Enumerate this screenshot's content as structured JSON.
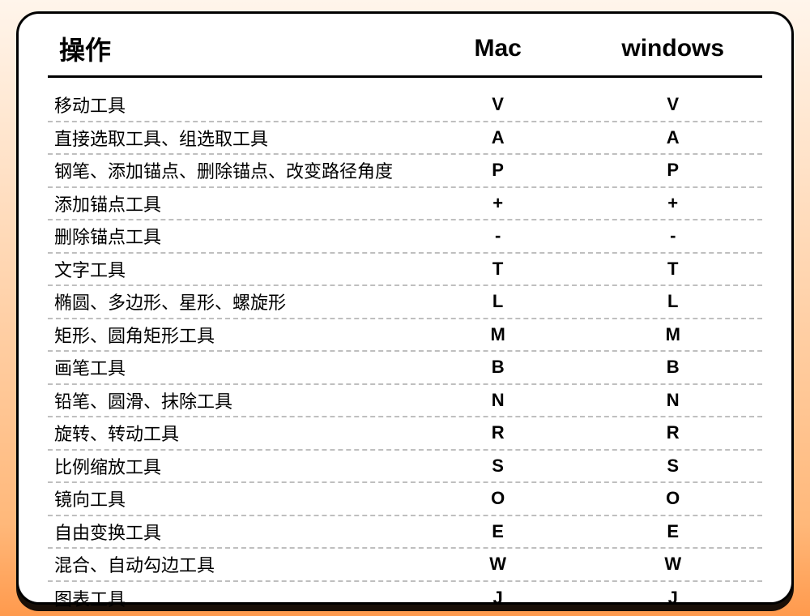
{
  "layout": {
    "background_gradient": [
      "#fff5eb",
      "#ffb87a",
      "#ff9a4d"
    ],
    "card_bg": "#ffffff",
    "card_border_color": "#000000",
    "card_border_width": 3,
    "card_border_radius": 28,
    "card_shadow": "0 8px 0 0 rgba(0,0,0,0.9)",
    "header_underline_color": "#000000",
    "header_underline_width": 3,
    "row_divider_color": "#bfbfbf",
    "row_divider_style": "dashed",
    "row_height": 40.5,
    "header_fontsize": 32,
    "header_fontsize_secondary": 30,
    "cell_fontsize": 22,
    "text_color": "#000000",
    "col_widths_pct": [
      51,
      24,
      25
    ]
  },
  "table": {
    "type": "table",
    "columns": {
      "operation": "操作",
      "mac": "Mac",
      "windows": "windows"
    },
    "rows": [
      {
        "op": "移动工具",
        "mac": "V",
        "win": "V"
      },
      {
        "op": "直接选取工具、组选取工具",
        "mac": "A",
        "win": "A"
      },
      {
        "op": "钢笔、添加锚点、删除锚点、改变路径角度",
        "mac": "P",
        "win": "P"
      },
      {
        "op": "添加锚点工具",
        "mac": "+",
        "win": "+"
      },
      {
        "op": "删除锚点工具",
        "mac": "-",
        "win": "-"
      },
      {
        "op": "文字工具",
        "mac": "T",
        "win": "T"
      },
      {
        "op": "椭圆、多边形、星形、螺旋形",
        "mac": "L",
        "win": "L"
      },
      {
        "op": "矩形、圆角矩形工具",
        "mac": "M",
        "win": "M"
      },
      {
        "op": "画笔工具",
        "mac": "B",
        "win": "B"
      },
      {
        "op": "铅笔、圆滑、抹除工具",
        "mac": "N",
        "win": "N"
      },
      {
        "op": "旋转、转动工具",
        "mac": "R",
        "win": "R"
      },
      {
        "op": "比例缩放工具",
        "mac": "S",
        "win": "S"
      },
      {
        "op": "镜向工具",
        "mac": "O",
        "win": "O"
      },
      {
        "op": "自由变换工具",
        "mac": "E",
        "win": "E"
      },
      {
        "op": "混合、自动勾边工具",
        "mac": "W",
        "win": "W"
      },
      {
        "op": "图表工具",
        "mac": "J",
        "win": "J"
      }
    ]
  }
}
